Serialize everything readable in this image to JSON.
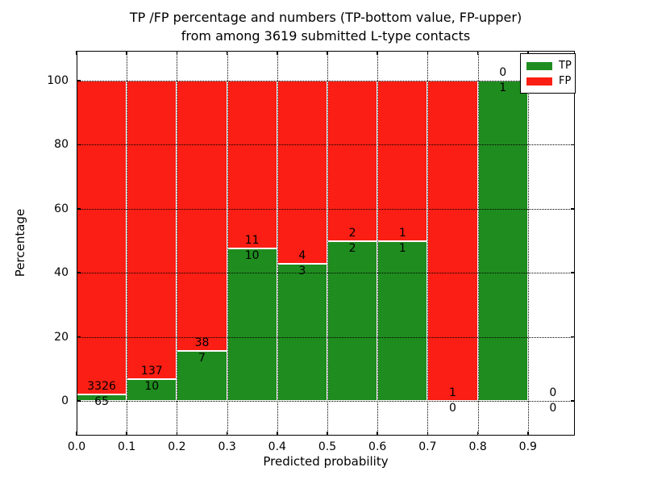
{
  "figure": {
    "title_line1": "TP /FP percentage and numbers (TP-bottom value, FP-upper)",
    "title_line2": "from among 3619 submitted L-type contacts",
    "xlabel": "Predicted probability",
    "ylabel": "Percentage"
  },
  "chart_data": {
    "type": "bar",
    "stacked": true,
    "title": "TP /FP percentage and numbers (TP-bottom value, FP-upper) from among 3619 submitted L-type contacts",
    "xlabel": "Predicted probability",
    "ylabel": "Percentage",
    "total_submitted_contacts": 3619,
    "x_ticks": [
      "0.0",
      "0.1",
      "0.2",
      "0.3",
      "0.4",
      "0.5",
      "0.6",
      "0.7",
      "0.8",
      "0.9"
    ],
    "y_ticks": [
      0,
      20,
      40,
      60,
      80,
      100
    ],
    "xlim": [
      0.0,
      1.0
    ],
    "ylim": [
      -10.8,
      109.3
    ],
    "grid": "dotted",
    "bar_total_percent": 100,
    "legend": {
      "position": "upper right",
      "items": [
        {
          "label": "TP",
          "color": "#1f8c1f"
        },
        {
          "label": "FP",
          "color": "#fa1e14"
        }
      ]
    },
    "colors": {
      "tp": "#1f8c1f",
      "fp": "#fa1e14",
      "edge": "#ffffff"
    },
    "bins": [
      {
        "start": 0.0,
        "end": 0.1,
        "tp": 65,
        "fp": 3326,
        "tp_pct": 1.92,
        "has_bar": true
      },
      {
        "start": 0.1,
        "end": 0.2,
        "tp": 10,
        "fp": 137,
        "tp_pct": 6.8,
        "has_bar": true
      },
      {
        "start": 0.2,
        "end": 0.3,
        "tp": 7,
        "fp": 38,
        "tp_pct": 15.56,
        "has_bar": true
      },
      {
        "start": 0.3,
        "end": 0.4,
        "tp": 10,
        "fp": 11,
        "tp_pct": 47.62,
        "has_bar": true
      },
      {
        "start": 0.4,
        "end": 0.5,
        "tp": 3,
        "fp": 4,
        "tp_pct": 42.86,
        "has_bar": true
      },
      {
        "start": 0.5,
        "end": 0.6,
        "tp": 2,
        "fp": 2,
        "tp_pct": 50.0,
        "has_bar": true
      },
      {
        "start": 0.6,
        "end": 0.7,
        "tp": 1,
        "fp": 1,
        "tp_pct": 50.0,
        "has_bar": true
      },
      {
        "start": 0.7,
        "end": 0.8,
        "tp": 0,
        "fp": 1,
        "tp_pct": 0.0,
        "has_bar": true
      },
      {
        "start": 0.8,
        "end": 0.9,
        "tp": 1,
        "fp": 0,
        "tp_pct": 100.0,
        "has_bar": true
      },
      {
        "start": 0.9,
        "end": 1.0,
        "tp": 0,
        "fp": 0,
        "tp_pct": 0.0,
        "has_bar": false
      }
    ]
  }
}
